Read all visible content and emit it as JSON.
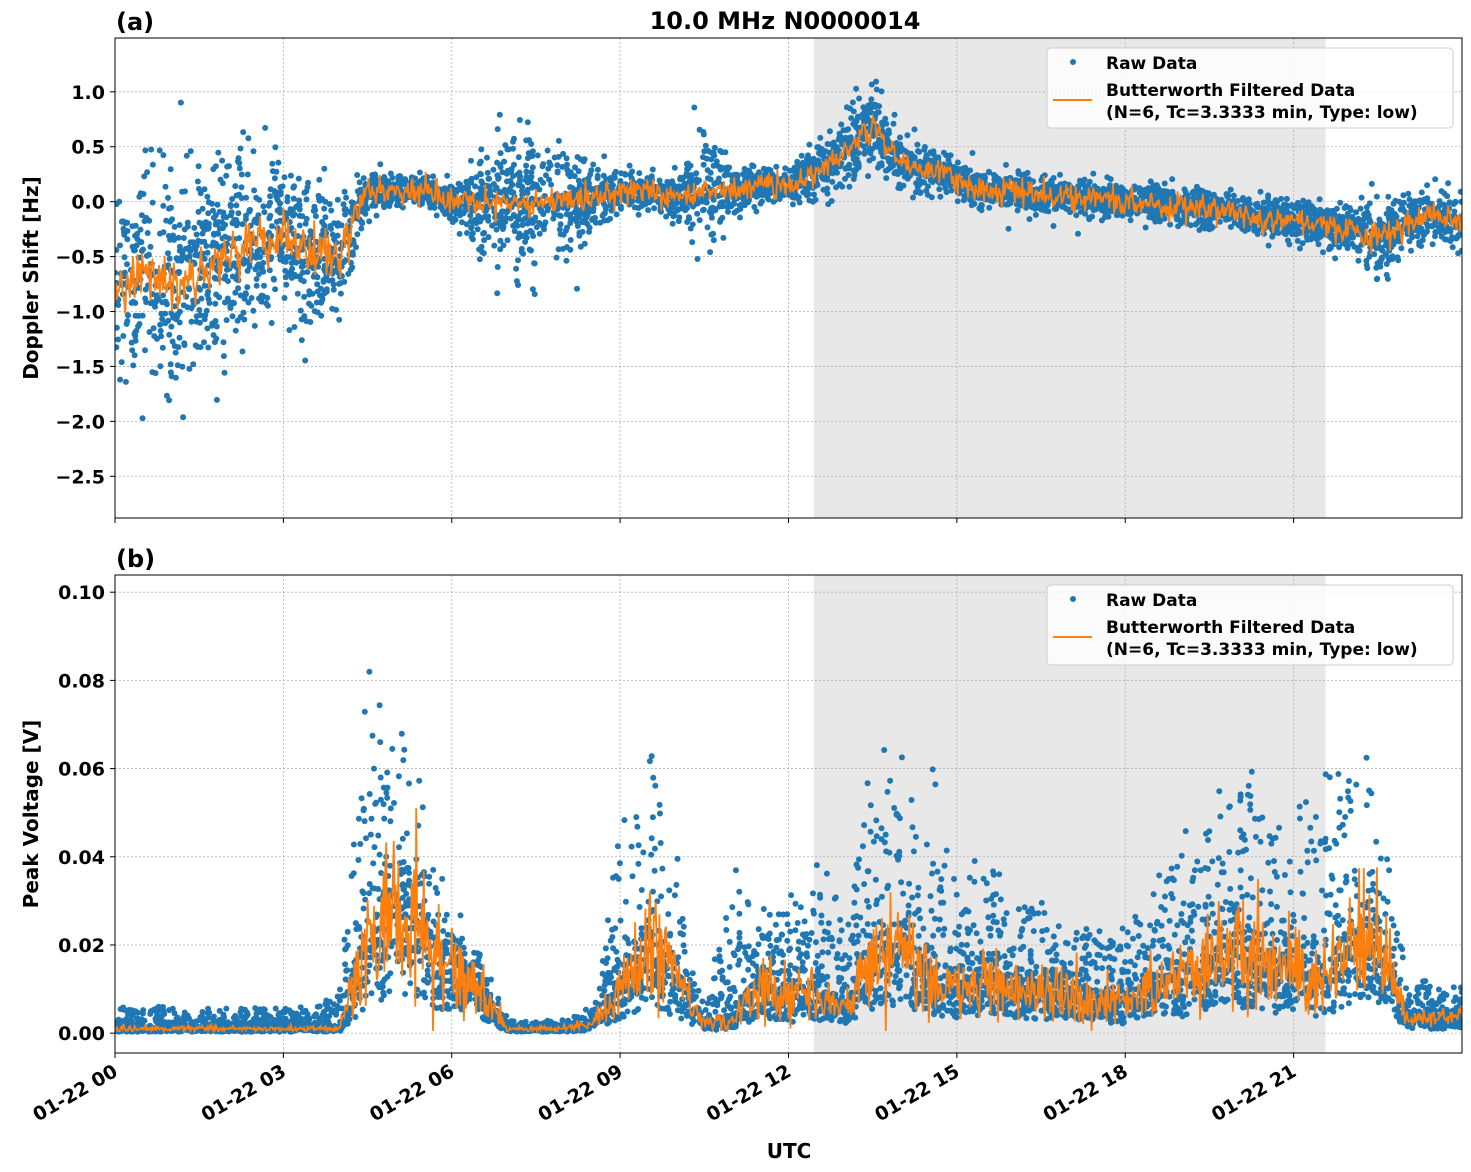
{
  "title": "10.0 MHz N0000014",
  "chart_data": [
    {
      "type": "scatter",
      "panel_label": "(a)",
      "ylabel": "Doppler Shift [Hz]",
      "xlabel": "",
      "xlim_hours": [
        0,
        24
      ],
      "ylim": [
        -2.88,
        1.49
      ],
      "yticks": [
        1.0,
        0.5,
        0.0,
        -0.5,
        -1.0,
        -1.5,
        -2.0,
        -2.5
      ],
      "ytick_labels": [
        "1.0",
        "0.5",
        "0.0",
        "−0.5",
        "−1.0",
        "−1.5",
        "−2.0",
        "−2.5"
      ],
      "grid": true,
      "legend_placement": "upper right",
      "shaded_interval_hours": [
        12.45,
        21.57
      ],
      "sample_hours_step": 0.5,
      "series": [
        {
          "name": "Raw Data",
          "kind": "points",
          "color": "#1f77b4",
          "approx_spread": [
            0.9,
            0.9,
            0.9,
            0.8,
            0.8,
            0.8,
            0.6,
            0.6,
            0.6,
            0.15,
            0.12,
            0.12,
            0.15,
            0.4,
            0.5,
            0.5,
            0.5,
            0.25,
            0.15,
            0.15,
            0.15,
            0.5,
            0.2,
            0.15,
            0.15,
            0.2,
            0.3,
            0.3,
            0.2,
            0.18,
            0.15,
            0.15,
            0.15,
            0.15,
            0.15,
            0.15,
            0.15,
            0.15,
            0.15,
            0.15,
            0.15,
            0.15,
            0.15,
            0.15,
            0.18,
            0.3,
            0.25,
            0.2,
            0.25
          ]
        },
        {
          "name": "Butterworth Filtered Data\n(N=6, Tc=3.3333 min, Type: low)",
          "kind": "line",
          "color": "#ff7f0e",
          "values": [
            -0.9,
            -0.6,
            -0.8,
            -0.6,
            -0.5,
            -0.4,
            -0.3,
            -0.5,
            -0.5,
            0.1,
            0.1,
            0.1,
            0.0,
            -0.05,
            0.0,
            0.0,
            0.0,
            0.05,
            0.1,
            0.1,
            0.05,
            0.1,
            0.1,
            0.15,
            0.15,
            0.25,
            0.45,
            0.7,
            0.35,
            0.3,
            0.2,
            0.1,
            0.1,
            0.05,
            0.05,
            0.02,
            0.0,
            -0.02,
            -0.05,
            -0.05,
            -0.1,
            -0.15,
            -0.15,
            -0.2,
            -0.25,
            -0.35,
            -0.2,
            -0.1,
            -0.2
          ]
        }
      ],
      "legend": [
        "Raw Data",
        "Butterworth Filtered Data",
        "(N=6, Tc=3.3333 min, Type: low)"
      ]
    },
    {
      "type": "scatter",
      "panel_label": "(b)",
      "ylabel": "Peak Voltage [V]",
      "xlabel": "UTC",
      "xlim_hours": [
        0,
        24
      ],
      "ylim": [
        -0.0045,
        0.1039
      ],
      "yticks": [
        0.1,
        0.08,
        0.06,
        0.04,
        0.02,
        0.0
      ],
      "ytick_labels": [
        "0.10",
        "0.08",
        "0.06",
        "0.04",
        "0.02",
        "0.00"
      ],
      "xticks_hours": [
        0,
        3,
        6,
        9,
        12,
        15,
        18,
        21
      ],
      "xtick_labels": [
        "01-22 00",
        "01-22 03",
        "01-22 06",
        "01-22 09",
        "01-22 12",
        "01-22 15",
        "01-22 18",
        "01-22 21"
      ],
      "grid": true,
      "legend_placement": "upper right",
      "shaded_interval_hours": [
        12.45,
        21.57
      ],
      "sample_hours_step": 0.5,
      "series": [
        {
          "name": "Raw Data",
          "kind": "points",
          "color": "#1f77b4",
          "approx_max": [
            0.006,
            0.006,
            0.006,
            0.006,
            0.006,
            0.006,
            0.006,
            0.006,
            0.01,
            0.08,
            0.075,
            0.05,
            0.03,
            0.02,
            0.003,
            0.003,
            0.003,
            0.006,
            0.05,
            0.07,
            0.04,
            0.005,
            0.04,
            0.03,
            0.03,
            0.045,
            0.03,
            0.07,
            0.06,
            0.07,
            0.035,
            0.04,
            0.03,
            0.03,
            0.025,
            0.025,
            0.025,
            0.035,
            0.045,
            0.05,
            0.075,
            0.05,
            0.05,
            0.06,
            0.065,
            0.06,
            0.015,
            0.012,
            0.01
          ]
        },
        {
          "name": "Butterworth Filtered Data\n(N=6, Tc=3.3333 min, Type: low)",
          "kind": "line",
          "color": "#ff7f0e",
          "values": [
            0.001,
            0.001,
            0.001,
            0.001,
            0.001,
            0.001,
            0.001,
            0.001,
            0.001,
            0.02,
            0.03,
            0.022,
            0.015,
            0.01,
            0.001,
            0.001,
            0.001,
            0.002,
            0.01,
            0.02,
            0.012,
            0.002,
            0.003,
            0.012,
            0.008,
            0.01,
            0.005,
            0.018,
            0.02,
            0.012,
            0.01,
            0.012,
            0.011,
            0.01,
            0.009,
            0.008,
            0.007,
            0.01,
            0.012,
            0.015,
            0.02,
            0.015,
            0.015,
            0.012,
            0.02,
            0.022,
            0.004,
            0.003,
            0.004
          ]
        }
      ],
      "legend": [
        "Raw Data",
        "Butterworth Filtered Data",
        "(N=6, Tc=3.3333 min, Type: low)"
      ]
    }
  ]
}
